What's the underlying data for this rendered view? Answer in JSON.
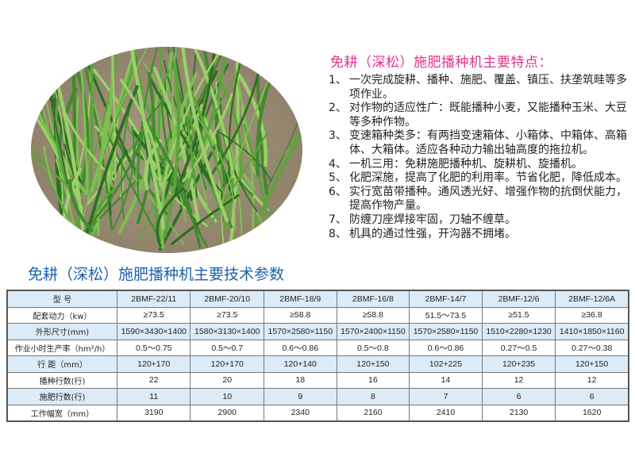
{
  "features": {
    "title": "免耕（深松）施肥播种机主要特点：",
    "items": [
      {
        "num": "1、",
        "text": "一次完成旋耕、播种、施肥、覆盖、镇压、扶垄筑畦等多项作业。"
      },
      {
        "num": "2、",
        "text": "对作物的适应性广：既能播种小麦，又能播种玉米、大豆等多种作物。"
      },
      {
        "num": "3、",
        "text": "变速箱种类多：有两挡变速箱体、小箱体、中箱体、高箱体、大箱体。适应各种动力输出轴高度的拖拉机。"
      },
      {
        "num": "4、",
        "text": "一机三用：免耕施肥播种机、旋耕机、旋播机。"
      },
      {
        "num": "5、",
        "text": "化肥深施，提高了化肥的利用率。节省化肥，降低成本。"
      },
      {
        "num": "6、",
        "text": "实行宽苗带播种。通风透光好、增强作物的抗倒伏能力，提高作物产量。"
      },
      {
        "num": "7、",
        "text": "防缠刀座焊接牢固，刀轴不缠草。"
      },
      {
        "num": "8、",
        "text": "机具的通过性强，开沟器不拥堵。"
      }
    ]
  },
  "spec": {
    "title": "免耕（深松）施肥播种机主要技术参数",
    "rows": [
      {
        "label": "型  号",
        "values": [
          "2BMF-22/11",
          "2BMF-20/10",
          "2BMF-18/9",
          "2BMF-16/8",
          "2BMF-14/7",
          "2BMF-12/6",
          "2BMF-12/6A"
        ]
      },
      {
        "label": "配套动力（kw）",
        "values": [
          "≥73.5",
          "≥73.5",
          "≥58.8",
          "≥58.8",
          "51.5～73.5",
          "≥51.5",
          "≥36.8"
        ]
      },
      {
        "label": "外形尺寸(mm)",
        "values": [
          "1590×3430×1400",
          "1580×3130×1400",
          "1570×2580×1150",
          "1570×2400×1150",
          "1570×2580×1150",
          "1510×2280×1230",
          "1410×1850×1160"
        ]
      },
      {
        "label": "作业小时生产率（hm²/h）",
        "values": [
          "0.5～0.75",
          "0.5～0.7",
          "0.6～0.86",
          "0.5～0.8",
          "0.6～0.86",
          "0.27～0.5",
          "0.27～0.38"
        ]
      },
      {
        "label": "行 距（mm）",
        "values": [
          "120+170",
          "120+170",
          "120+140",
          "120+150",
          "102+225",
          "120+235",
          "120+150"
        ]
      },
      {
        "label": "播种行数(行)",
        "values": [
          "22",
          "20",
          "18",
          "16",
          "14",
          "12",
          "12"
        ]
      },
      {
        "label": "施肥行数(行)",
        "values": [
          "11",
          "10",
          "9",
          "8",
          "7",
          "6",
          "6"
        ]
      },
      {
        "label": "工作幅宽（mm）",
        "values": [
          "3190",
          "2900",
          "2340",
          "2160",
          "2410",
          "2130",
          "1620"
        ]
      }
    ]
  },
  "colors": {
    "feature_title": "#e0338c",
    "spec_title": "#1e62aa",
    "row_shade": "#dcebf8"
  }
}
